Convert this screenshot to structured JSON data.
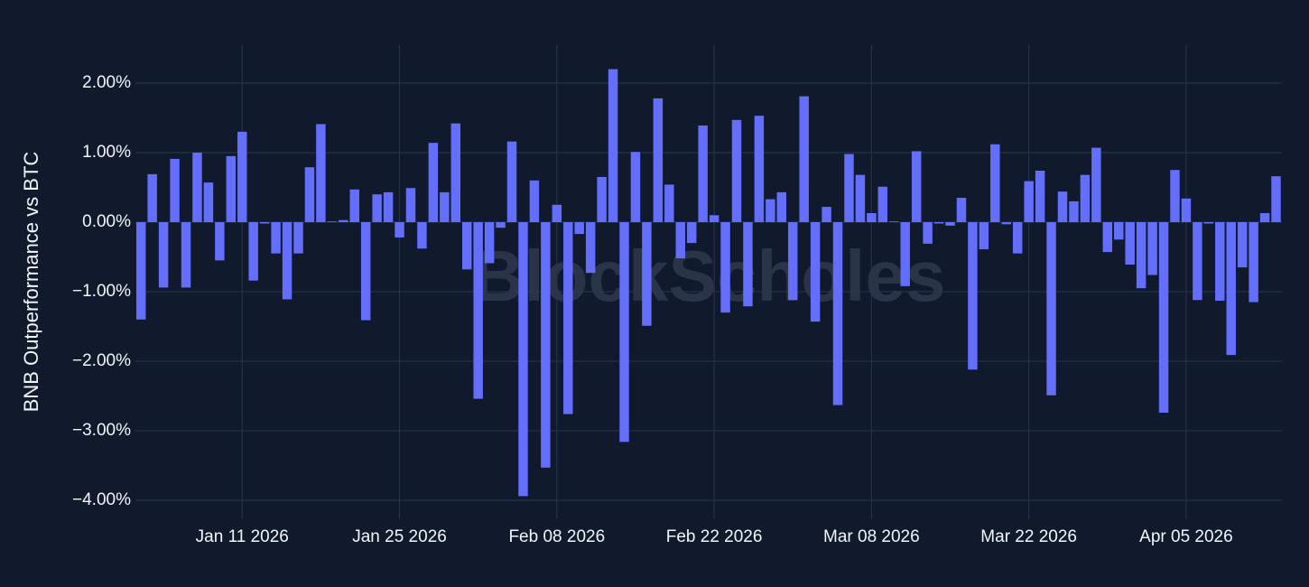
{
  "chart_data": {
    "type": "bar",
    "y_label": "BNB Outperformance vs BTC",
    "watermark": "BlockScholes",
    "color": "#636efa",
    "grid": true,
    "x": [
      "2026-01-02",
      "2026-01-03",
      "2026-01-04",
      "2026-01-05",
      "2026-01-06",
      "2026-01-07",
      "2026-01-08",
      "2026-01-09",
      "2026-01-10",
      "2026-01-11",
      "2026-01-12",
      "2026-01-13",
      "2026-01-14",
      "2026-01-15",
      "2026-01-16",
      "2026-01-17",
      "2026-01-18",
      "2026-01-19",
      "2026-01-20",
      "2026-01-21",
      "2026-01-22",
      "2026-01-23",
      "2026-01-24",
      "2026-01-25",
      "2026-01-26",
      "2026-01-27",
      "2026-01-28",
      "2026-01-29",
      "2026-01-30",
      "2026-01-31",
      "2026-02-01",
      "2026-02-02",
      "2026-02-03",
      "2026-02-04",
      "2026-02-05",
      "2026-02-06",
      "2026-02-07",
      "2026-02-08",
      "2026-02-09",
      "2026-02-10",
      "2026-02-11",
      "2026-02-12",
      "2026-02-13",
      "2026-02-14",
      "2026-02-15",
      "2026-02-16",
      "2026-02-17",
      "2026-02-18",
      "2026-02-19",
      "2026-02-20",
      "2026-02-21",
      "2026-02-22",
      "2026-02-23",
      "2026-02-24",
      "2026-02-25",
      "2026-02-26",
      "2026-02-27",
      "2026-02-28",
      "2026-03-01",
      "2026-03-02",
      "2026-03-03",
      "2026-03-04",
      "2026-03-05",
      "2026-03-06",
      "2026-03-07",
      "2026-03-08",
      "2026-03-09",
      "2026-03-10",
      "2026-03-11",
      "2026-03-12",
      "2026-03-13",
      "2026-03-14",
      "2026-03-15",
      "2026-03-16",
      "2026-03-17",
      "2026-03-18",
      "2026-03-19",
      "2026-03-20",
      "2026-03-21",
      "2026-03-22",
      "2026-03-23",
      "2026-03-24",
      "2026-03-25",
      "2026-03-26",
      "2026-03-27",
      "2026-03-28",
      "2026-03-29",
      "2026-03-30",
      "2026-03-31",
      "2026-04-01",
      "2026-04-02",
      "2026-04-03",
      "2026-04-04",
      "2026-04-05",
      "2026-04-06",
      "2026-04-07",
      "2026-04-08",
      "2026-04-09",
      "2026-04-10",
      "2026-04-11",
      "2026-04-12",
      "2026-04-13"
    ],
    "values": [
      -1.4,
      0.69,
      -0.94,
      0.91,
      -0.94,
      1.0,
      0.57,
      -0.55,
      0.95,
      1.3,
      -0.84,
      -0.02,
      -0.45,
      -1.11,
      -0.45,
      0.79,
      1.41,
      0.01,
      0.03,
      0.47,
      -1.41,
      0.4,
      0.43,
      -0.22,
      0.49,
      -0.38,
      1.14,
      0.43,
      1.42,
      -0.68,
      -2.54,
      -0.59,
      -0.08,
      1.16,
      -3.94,
      0.6,
      -3.53,
      0.25,
      -2.76,
      -0.17,
      -0.73,
      0.65,
      2.2,
      -3.16,
      1.01,
      -1.49,
      1.78,
      0.54,
      -0.52,
      -0.3,
      1.39,
      0.1,
      -1.3,
      1.47,
      -1.21,
      1.53,
      0.33,
      0.43,
      -1.12,
      1.81,
      -1.43,
      0.22,
      -2.63,
      0.98,
      0.68,
      0.13,
      0.51,
      0.01,
      -0.92,
      1.02,
      -0.31,
      -0.02,
      -0.05,
      0.35,
      -2.12,
      -0.39,
      1.12,
      -0.03,
      -0.45,
      0.59,
      0.74,
      -2.49,
      0.44,
      0.3,
      0.68,
      1.07,
      -0.43,
      -0.25,
      -0.61,
      -0.95,
      -0.76,
      -2.74,
      0.75,
      0.34,
      -1.12,
      -0.02,
      -1.13,
      -1.91,
      -0.65,
      -1.15,
      0.13,
      0.66
    ],
    "xlim": [
      "2026-01-01T12:00:00Z",
      "2026-04-13T12:30:00Z"
    ],
    "xticks": [
      {
        "value": "2026-01-11",
        "label": "Jan 11 2026"
      },
      {
        "value": "2026-01-25",
        "label": "Jan 25 2026"
      },
      {
        "value": "2026-02-08",
        "label": "Feb 08 2026"
      },
      {
        "value": "2026-02-22",
        "label": "Feb 22 2026"
      },
      {
        "value": "2026-03-08",
        "label": "Mar 08 2026"
      },
      {
        "value": "2026-03-22",
        "label": "Mar 22 2026"
      },
      {
        "value": "2026-04-05",
        "label": "Apr 05 2026"
      }
    ],
    "ylim": [
      -4.27,
      2.55
    ],
    "yticks": [
      {
        "value": 2,
        "label": "2.00%"
      },
      {
        "value": 1,
        "label": "1.00%"
      },
      {
        "value": 0,
        "label": "0.00%"
      },
      {
        "value": -1,
        "label": "−1.00%"
      },
      {
        "value": -2,
        "label": "−2.00%"
      },
      {
        "value": -3,
        "label": "−3.00%"
      },
      {
        "value": -4,
        "label": "−4.00%"
      }
    ]
  }
}
